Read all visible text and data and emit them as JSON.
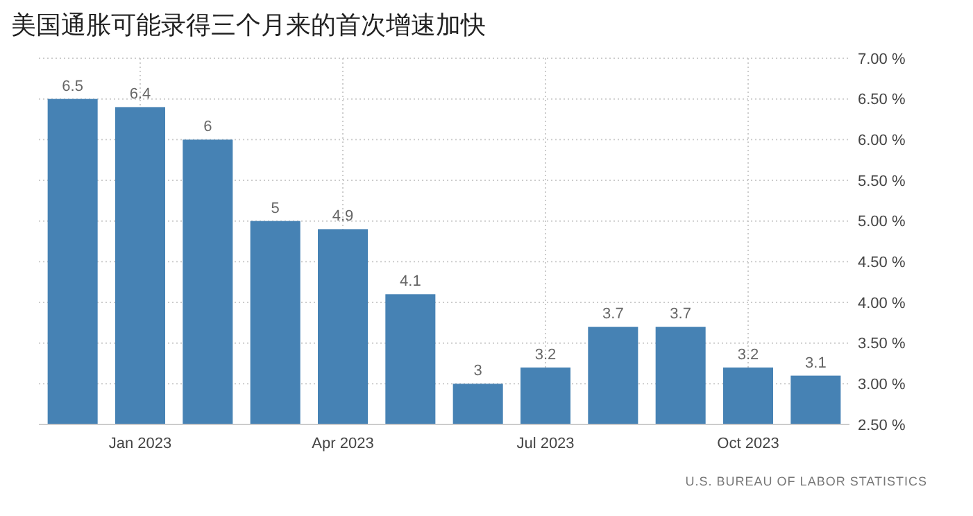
{
  "chart_data": {
    "type": "bar",
    "title": "美国通胀可能录得三个月来的首次增速加快",
    "categories": [
      null,
      "Jan 2023",
      null,
      null,
      "Apr 2023",
      null,
      null,
      "Jul 2023",
      null,
      null,
      "Oct 2023",
      null
    ],
    "values": [
      6.5,
      6.4,
      6,
      5,
      4.9,
      4.1,
      3,
      3.2,
      3.7,
      3.7,
      3.2,
      3.1
    ],
    "color": "#4682b4",
    "ylim": [
      2.5,
      7
    ],
    "yticks": [
      {
        "value": 2.5,
        "label": "2.50 %"
      },
      {
        "value": 3,
        "label": "3.00 %"
      },
      {
        "value": 3.5,
        "label": "3.50 %"
      },
      {
        "value": 4,
        "label": "4.00 %"
      },
      {
        "value": 4.5,
        "label": "4.50 %"
      },
      {
        "value": 5,
        "label": "5.00 %"
      },
      {
        "value": 5.5,
        "label": "5.50 %"
      },
      {
        "value": 6,
        "label": "6.00 %"
      },
      {
        "value": 6.5,
        "label": "6.50 %"
      },
      {
        "value": 7,
        "label": "7.00 %"
      }
    ],
    "grid": true,
    "data_labels": true,
    "annotations": [
      "U.S. BUREAU OF LABOR STATISTICS"
    ]
  }
}
